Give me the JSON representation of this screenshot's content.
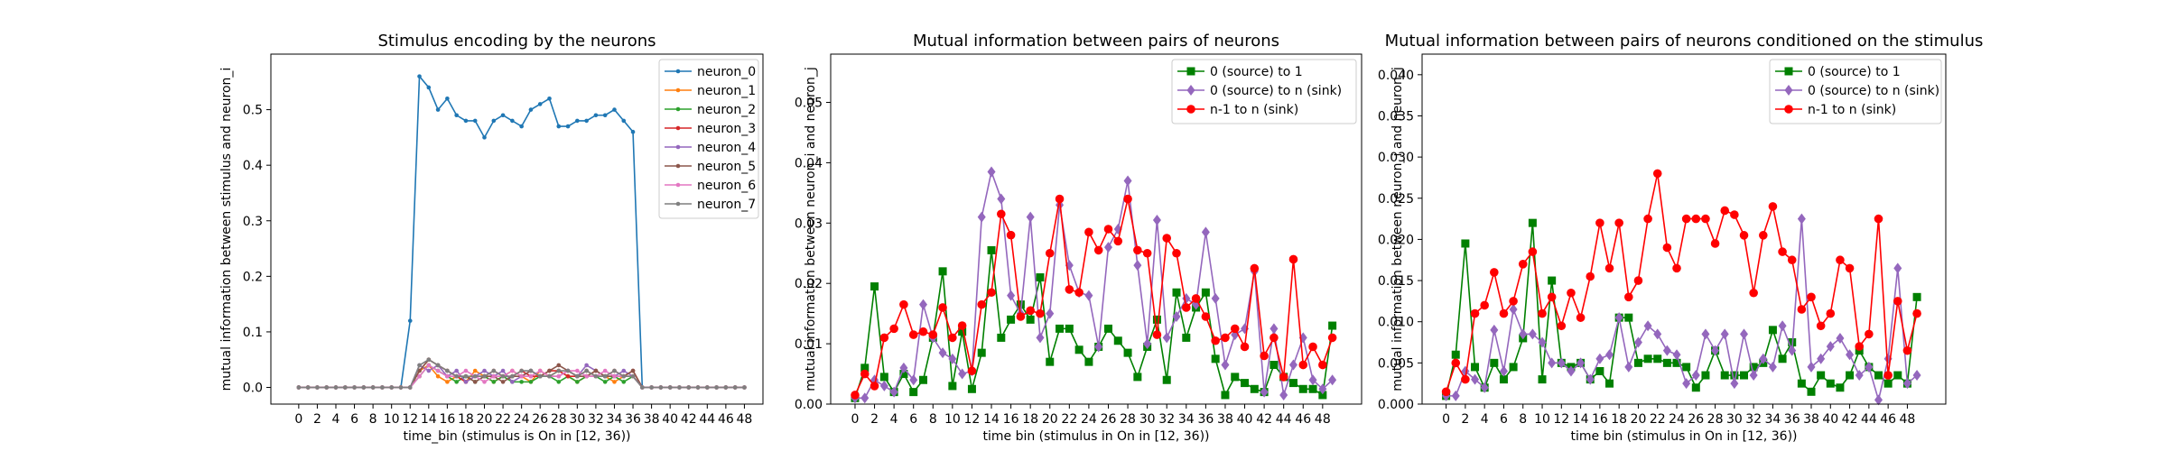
{
  "chart_data": [
    {
      "type": "line",
      "title": "Stimulus encoding by the neurons",
      "xlabel": "time_bin (stimulus is On in [12, 36))",
      "ylabel": "mutual information between stimulus and neuron_i",
      "xlim": [
        -3,
        50
      ],
      "ylim": [
        -0.03,
        0.6
      ],
      "xticks": [
        0,
        2,
        4,
        6,
        8,
        10,
        12,
        14,
        16,
        18,
        20,
        22,
        24,
        26,
        28,
        30,
        32,
        34,
        36,
        38,
        40,
        42,
        44,
        46,
        48
      ],
      "yticks": [
        0.0,
        0.1,
        0.2,
        0.3,
        0.4,
        0.5
      ],
      "ytick_labels": [
        "0.0",
        "0.1",
        "0.2",
        "0.3",
        "0.4",
        "0.5"
      ],
      "legend_loc": "top-right",
      "x": [
        0,
        1,
        2,
        3,
        4,
        5,
        6,
        7,
        8,
        9,
        10,
        11,
        12,
        13,
        14,
        15,
        16,
        17,
        18,
        19,
        20,
        21,
        22,
        23,
        24,
        25,
        26,
        27,
        28,
        29,
        30,
        31,
        32,
        33,
        34,
        35,
        36,
        37,
        38,
        39,
        40,
        41,
        42,
        43,
        44,
        45,
        46,
        47,
        48
      ],
      "series": [
        {
          "name": "neuron_0",
          "color": "#1f77b4",
          "marker": "point",
          "values": [
            0,
            0,
            0,
            0,
            0,
            0,
            0,
            0,
            0,
            0,
            0,
            0,
            0.12,
            0.56,
            0.54,
            0.5,
            0.52,
            0.49,
            0.48,
            0.48,
            0.45,
            0.48,
            0.49,
            0.48,
            0.47,
            0.5,
            0.51,
            0.52,
            0.47,
            0.47,
            0.48,
            0.48,
            0.49,
            0.49,
            0.5,
            0.48,
            0.46,
            0,
            0,
            0,
            0,
            0,
            0,
            0,
            0,
            0,
            0,
            0,
            0
          ]
        },
        {
          "name": "neuron_1",
          "color": "#ff7f0e",
          "marker": "point",
          "values": [
            0,
            0,
            0,
            0,
            0,
            0,
            0,
            0,
            0,
            0,
            0,
            0,
            0,
            0.03,
            0.04,
            0.02,
            0.01,
            0.02,
            0.01,
            0.03,
            0.02,
            0.01,
            0.02,
            0.03,
            0.02,
            0.01,
            0.03,
            0.02,
            0.03,
            0.02,
            0.01,
            0.02,
            0.03,
            0.02,
            0.01,
            0.02,
            0.02,
            0,
            0,
            0,
            0,
            0,
            0,
            0,
            0,
            0,
            0,
            0,
            0
          ]
        },
        {
          "name": "neuron_2",
          "color": "#2ca02c",
          "marker": "point",
          "values": [
            0,
            0,
            0,
            0,
            0,
            0,
            0,
            0,
            0,
            0,
            0,
            0,
            0,
            0.02,
            0.04,
            0.03,
            0.02,
            0.01,
            0.02,
            0.01,
            0.02,
            0.01,
            0.02,
            0.01,
            0.01,
            0.01,
            0.02,
            0.02,
            0.01,
            0.02,
            0.01,
            0.02,
            0.02,
            0.01,
            0.02,
            0.01,
            0.02,
            0,
            0,
            0,
            0,
            0,
            0,
            0,
            0,
            0,
            0,
            0,
            0
          ]
        },
        {
          "name": "neuron_3",
          "color": "#d62728",
          "marker": "point",
          "values": [
            0,
            0,
            0,
            0,
            0,
            0,
            0,
            0,
            0,
            0,
            0,
            0,
            0,
            0.03,
            0.05,
            0.04,
            0.03,
            0.02,
            0.01,
            0.02,
            0.02,
            0.03,
            0.02,
            0.02,
            0.03,
            0.02,
            0.02,
            0.03,
            0.03,
            0.02,
            0.02,
            0.03,
            0.02,
            0.02,
            0.03,
            0.02,
            0.03,
            0,
            0,
            0,
            0,
            0,
            0,
            0,
            0,
            0,
            0,
            0,
            0
          ]
        },
        {
          "name": "neuron_4",
          "color": "#9467bd",
          "marker": "point",
          "values": [
            0,
            0,
            0,
            0,
            0,
            0,
            0,
            0,
            0,
            0,
            0,
            0,
            0,
            0.04,
            0.03,
            0.04,
            0.02,
            0.03,
            0.01,
            0.02,
            0.03,
            0.02,
            0.03,
            0.01,
            0.02,
            0.03,
            0.02,
            0.02,
            0.02,
            0.03,
            0.02,
            0.04,
            0.03,
            0.02,
            0.02,
            0.03,
            0.02,
            0,
            0,
            0,
            0,
            0,
            0,
            0,
            0,
            0,
            0,
            0,
            0
          ]
        },
        {
          "name": "neuron_5",
          "color": "#8c564b",
          "marker": "point",
          "values": [
            0,
            0,
            0,
            0,
            0,
            0,
            0,
            0,
            0,
            0,
            0,
            0,
            0,
            0.03,
            0.05,
            0.04,
            0.03,
            0.02,
            0.02,
            0.01,
            0.02,
            0.02,
            0.01,
            0.02,
            0.02,
            0.03,
            0.02,
            0.03,
            0.04,
            0.03,
            0.02,
            0.02,
            0.03,
            0.02,
            0.02,
            0.02,
            0.03,
            0,
            0,
            0,
            0,
            0,
            0,
            0,
            0,
            0,
            0,
            0,
            0
          ]
        },
        {
          "name": "neuron_6",
          "color": "#e377c2",
          "marker": "point",
          "values": [
            0,
            0,
            0,
            0,
            0,
            0,
            0,
            0,
            0,
            0,
            0,
            0,
            0,
            0.02,
            0.04,
            0.03,
            0.02,
            0.02,
            0.03,
            0.02,
            0.01,
            0.02,
            0.02,
            0.03,
            0.02,
            0.02,
            0.03,
            0.02,
            0.02,
            0.03,
            0.03,
            0.02,
            0.02,
            0.03,
            0.02,
            0.02,
            0.02,
            0,
            0,
            0,
            0,
            0,
            0,
            0,
            0,
            0,
            0,
            0,
            0
          ]
        },
        {
          "name": "neuron_7",
          "color": "#7f7f7f",
          "marker": "point",
          "values": [
            0,
            0,
            0,
            0,
            0,
            0,
            0,
            0,
            0,
            0,
            0,
            0,
            0,
            0.04,
            0.05,
            0.04,
            0.03,
            0.02,
            0.02,
            0.02,
            0.02,
            0.03,
            0.02,
            0.02,
            0.03,
            0.03,
            0.02,
            0.02,
            0.03,
            0.03,
            0.02,
            0.03,
            0.02,
            0.02,
            0.03,
            0.02,
            0.02,
            0,
            0,
            0,
            0,
            0,
            0,
            0,
            0,
            0,
            0,
            0,
            0
          ]
        }
      ]
    },
    {
      "type": "line",
      "title": "Mutual information between pairs of neurons",
      "xlabel": "time bin (stimulus in On in [12, 36))",
      "ylabel": "mutual information between neuron_i and neuron_j",
      "xlim": [
        -2.5,
        52
      ],
      "ylim": [
        0,
        0.058
      ],
      "xticks": [
        0,
        2,
        4,
        6,
        8,
        10,
        12,
        14,
        16,
        18,
        20,
        22,
        24,
        26,
        28,
        30,
        32,
        34,
        36,
        38,
        40,
        42,
        44,
        46,
        48
      ],
      "yticks": [
        0.0,
        0.01,
        0.02,
        0.03,
        0.04,
        0.05
      ],
      "ytick_labels": [
        "0.00",
        "0.01",
        "0.02",
        "0.03",
        "0.04",
        "0.05"
      ],
      "legend_loc": "top-right",
      "x": [
        0,
        1,
        2,
        3,
        4,
        5,
        6,
        7,
        8,
        9,
        10,
        11,
        12,
        13,
        14,
        15,
        16,
        17,
        18,
        19,
        20,
        21,
        22,
        23,
        24,
        25,
        26,
        27,
        28,
        29,
        30,
        31,
        32,
        33,
        34,
        35,
        36,
        37,
        38,
        39,
        40,
        41,
        42,
        43,
        44,
        45,
        46,
        47,
        48,
        49
      ],
      "series": [
        {
          "name": "0 (source) to 1",
          "color": "#008000",
          "marker": "square",
          "values": [
            0.001,
            0.006,
            0.0195,
            0.0045,
            0.002,
            0.005,
            0.002,
            0.004,
            0.011,
            0.022,
            0.003,
            0.012,
            0.0025,
            0.0085,
            0.0255,
            0.011,
            0.014,
            0.0165,
            0.014,
            0.021,
            0.007,
            0.0125,
            0.0125,
            0.009,
            0.007,
            0.0095,
            0.0125,
            0.0105,
            0.0085,
            0.0045,
            0.0095,
            0.014,
            0.004,
            0.0185,
            0.011,
            0.016,
            0.0185,
            0.0075,
            0.0015,
            0.0045,
            0.0035,
            0.0025,
            0.002,
            0.0065,
            0.0045,
            0.0035,
            0.0025,
            0.0025,
            0.0015,
            0.013
          ]
        },
        {
          "name": "0 (source) to n (sink)",
          "color": "#9467bd",
          "marker": "diamond",
          "values": [
            0.001,
            0.001,
            0.004,
            0.003,
            0.002,
            0.006,
            0.004,
            0.0165,
            0.011,
            0.0085,
            0.0075,
            0.005,
            0.0055,
            0.031,
            0.0385,
            0.034,
            0.018,
            0.015,
            0.031,
            0.011,
            0.015,
            0.033,
            0.023,
            0.0185,
            0.018,
            0.0095,
            0.026,
            0.029,
            0.037,
            0.023,
            0.01,
            0.0305,
            0.011,
            0.0145,
            0.0175,
            0.0165,
            0.0285,
            0.0175,
            0.0065,
            0.0115,
            0.0125,
            0.022,
            0.002,
            0.0125,
            0.0015,
            0.0065,
            0.011,
            0.004,
            0.0025,
            0.004
          ]
        },
        {
          "name": "n-1 to n (sink)",
          "color": "#ff0000",
          "marker": "circle",
          "values": [
            0.0015,
            0.005,
            0.003,
            0.011,
            0.0125,
            0.0165,
            0.0115,
            0.012,
            0.0115,
            0.016,
            0.011,
            0.013,
            0.0055,
            0.0165,
            0.0185,
            0.0315,
            0.028,
            0.0145,
            0.0155,
            0.015,
            0.025,
            0.034,
            0.019,
            0.0185,
            0.0285,
            0.0255,
            0.029,
            0.027,
            0.034,
            0.0255,
            0.025,
            0.0115,
            0.0275,
            0.025,
            0.016,
            0.0175,
            0.0145,
            0.0105,
            0.011,
            0.0125,
            0.0095,
            0.0225,
            0.008,
            0.011,
            0.0045,
            0.024,
            0.0065,
            0.0095,
            0.0065,
            0.011
          ]
        }
      ]
    },
    {
      "type": "line",
      "title": "Mutual information between pairs of neurons conditioned on the stimulus",
      "xlabel": "time bin (stimulus in On in [12, 36))",
      "ylabel": "mutual information between neuron_i and neuron_j",
      "xlim": [
        -2.5,
        52
      ],
      "ylim": [
        0,
        0.0425
      ],
      "xticks": [
        0,
        2,
        4,
        6,
        8,
        10,
        12,
        14,
        16,
        18,
        20,
        22,
        24,
        26,
        28,
        30,
        32,
        34,
        36,
        38,
        40,
        42,
        44,
        46,
        48
      ],
      "yticks": [
        0.0,
        0.005,
        0.01,
        0.015,
        0.02,
        0.025,
        0.03,
        0.035,
        0.04
      ],
      "ytick_labels": [
        "0.000",
        "0.005",
        "0.010",
        "0.015",
        "0.020",
        "0.025",
        "0.030",
        "0.035",
        "0.040"
      ],
      "legend_loc": "top-right",
      "x": [
        0,
        1,
        2,
        3,
        4,
        5,
        6,
        7,
        8,
        9,
        10,
        11,
        12,
        13,
        14,
        15,
        16,
        17,
        18,
        19,
        20,
        21,
        22,
        23,
        24,
        25,
        26,
        27,
        28,
        29,
        30,
        31,
        32,
        33,
        34,
        35,
        36,
        37,
        38,
        39,
        40,
        41,
        42,
        43,
        44,
        45,
        46,
        47,
        48,
        49
      ],
      "series": [
        {
          "name": "0 (source) to 1",
          "color": "#008000",
          "marker": "square",
          "values": [
            0.001,
            0.006,
            0.0195,
            0.0045,
            0.002,
            0.005,
            0.003,
            0.0045,
            0.008,
            0.022,
            0.003,
            0.015,
            0.005,
            0.0045,
            0.005,
            0.003,
            0.004,
            0.0025,
            0.0105,
            0.0105,
            0.005,
            0.0055,
            0.0055,
            0.005,
            0.005,
            0.0045,
            0.002,
            0.0035,
            0.0065,
            0.0035,
            0.0035,
            0.0035,
            0.0045,
            0.005,
            0.009,
            0.0055,
            0.0075,
            0.0025,
            0.0015,
            0.0035,
            0.0025,
            0.002,
            0.0035,
            0.0065,
            0.0045,
            0.0035,
            0.0025,
            0.0035,
            0.0025,
            0.013
          ]
        },
        {
          "name": "0 (source) to n (sink)",
          "color": "#9467bd",
          "marker": "diamond",
          "values": [
            0.001,
            0.001,
            0.004,
            0.003,
            0.002,
            0.009,
            0.004,
            0.0115,
            0.0085,
            0.0085,
            0.0075,
            0.005,
            0.005,
            0.004,
            0.005,
            0.003,
            0.0055,
            0.006,
            0.0105,
            0.0045,
            0.0075,
            0.0095,
            0.0085,
            0.0065,
            0.006,
            0.0025,
            0.0035,
            0.0085,
            0.0065,
            0.0085,
            0.0025,
            0.0085,
            0.0035,
            0.0055,
            0.0045,
            0.0095,
            0.0065,
            0.0225,
            0.0045,
            0.0055,
            0.007,
            0.008,
            0.006,
            0.0035,
            0.0045,
            0.0005,
            0.0055,
            0.0165,
            0.0025,
            0.0035
          ]
        },
        {
          "name": "n-1 to n (sink)",
          "color": "#ff0000",
          "marker": "circle",
          "values": [
            0.0015,
            0.005,
            0.003,
            0.011,
            0.012,
            0.016,
            0.011,
            0.0125,
            0.017,
            0.0185,
            0.011,
            0.013,
            0.0095,
            0.0135,
            0.0105,
            0.0155,
            0.022,
            0.0165,
            0.022,
            0.013,
            0.015,
            0.0225,
            0.028,
            0.019,
            0.0165,
            0.0225,
            0.0225,
            0.0225,
            0.0195,
            0.0235,
            0.023,
            0.0205,
            0.0135,
            0.0205,
            0.024,
            0.0185,
            0.0175,
            0.0115,
            0.013,
            0.0095,
            0.011,
            0.0175,
            0.0165,
            0.007,
            0.0085,
            0.0225,
            0.0035,
            0.0125,
            0.0065,
            0.011
          ]
        }
      ]
    }
  ]
}
